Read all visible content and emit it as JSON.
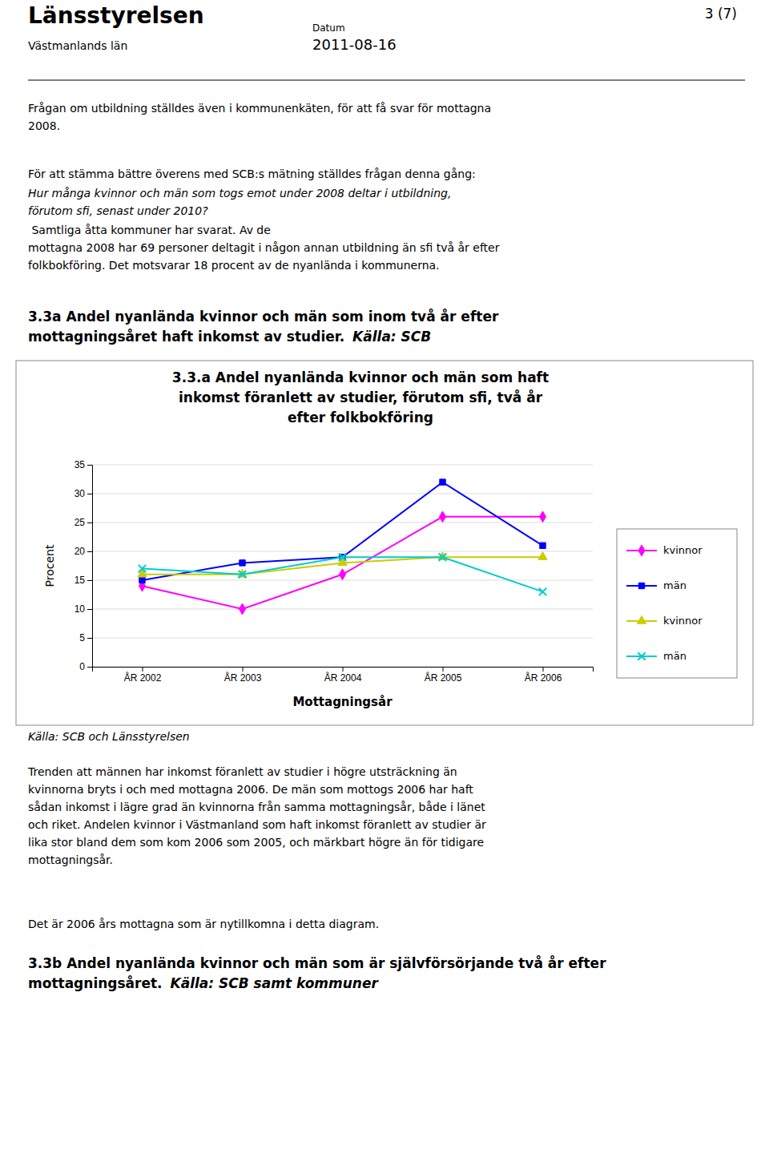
{
  "chart_data": {
    "type": "line",
    "title": "3.3.a Andel nyanlända kvinnor och män som haft\ninkomst föranlett av studier, förutom sfi, två år\nefter folkbokföring",
    "x_label": "Mottagningsår",
    "y_label": "Procent",
    "categories": [
      "ÅR 2002",
      "ÅR 2003",
      "ÅR 2004",
      "ÅR 2005",
      "ÅR 2006"
    ],
    "series": [
      {
        "name": "kvinnor",
        "color": "#FF00FF",
        "marker": "diamond",
        "values": [
          14,
          10,
          16,
          26,
          26
        ]
      },
      {
        "name": "män",
        "color": "#0000FF",
        "marker": "square",
        "values": [
          15,
          18,
          19,
          32,
          21
        ]
      },
      {
        "name": "kvinnor",
        "color": "#CCCC00",
        "marker": "triangle",
        "values": [
          16,
          16,
          18,
          19,
          19
        ]
      },
      {
        "name": "män",
        "color": "#00CCCC",
        "marker": "x",
        "values": [
          17,
          16,
          19,
          19,
          13
        ]
      }
    ],
    "ylim": [
      0,
      35
    ],
    "yticks": [
      0,
      5,
      10,
      15,
      20,
      25,
      30,
      35
    ],
    "grid": true,
    "legend": "right"
  },
  "page": {
    "header_title": "Länsstyrelsen",
    "header_subtitle": "Västmanlands län",
    "header_page": "3 (7)",
    "header_datum_label": "Datum",
    "header_datum": "2011-08-16",
    "para1": "Frågan om utbildning ställdes även i kommunenkäten, för att få svar för mottagna\n2008.",
    "para2_normal": "För att stämma bättre överens med SCB:s mätning ställdes frågan denna gång:",
    "para2_italic": "Hur många kvinnor och män som togs emot under 2008 deltar i utbildning,\nförutom sfi, senast under 2010?",
    "para2_rest": " Samtliga åtta kommuner har svarat. Av de\nmottagna 2008 har 69 personer deltagit i någon annan utbildning än sfi två år efter\nfolkbokföring. Det motsvarar 18 procent av de nyanlända i kommunerna.",
    "section_heading": "3.3a Andel nyanlända kvinnor och män som inom två år efter\nmottagningsåret haft inkomst av studier. ",
    "section_heading_italic": "Källa: SCB",
    "source_italic": "Källa: SCB och Länsstyrelsen",
    "para3": "Trenden att männen har inkomst föranlett av studier i högre utsträckning än\nkvinnorna bryts i och med mottagna 2006. De män som mottogs 2006 har haft\nsådan inkomst i lägre grad än kvinnorna från samma mottagningsår, både i länet\noch riket. Andelen kvinnor i Västmanland som haft inkomst föranlett av studier är\nlika stor bland dem som kom 2006 som 2005, och märkbart högre än för tidigare\nmottagningsår.",
    "para4": "Det är 2006 års mottagna som är nytillkomna i detta diagram.",
    "section2_bold": "3.3b Andel nyanlända kvinnor och män som är självförsörjande två år efter\nmottagningsåret. ",
    "section2_italic": "Källa: SCB samt kommuner"
  }
}
